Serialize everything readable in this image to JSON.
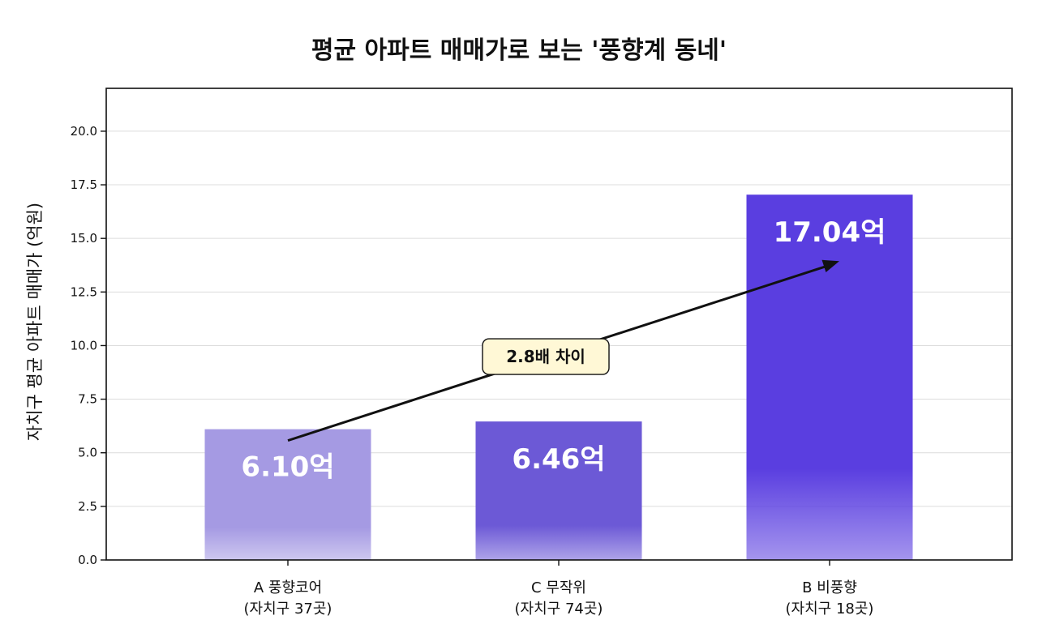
{
  "chart_data": {
    "type": "bar",
    "title": "평균 아파트 매매가로 보는 '풍향계 동네'",
    "ylabel": "자치구 평균 아파트 매매가 (억원)",
    "xlabel": "",
    "ylim": [
      0,
      22
    ],
    "yticks": [
      "0.0",
      "2.5",
      "5.0",
      "7.5",
      "10.0",
      "12.5",
      "15.0",
      "17.5",
      "20.0"
    ],
    "grid": true,
    "categories": [
      {
        "line1": "A 풍향코어",
        "line2": "(자치구 37곳)"
      },
      {
        "line1": "C 무작위",
        "line2": "(자치구 74곳)"
      },
      {
        "line1": "B 비풍향",
        "line2": "(자치구 18곳)"
      }
    ],
    "values": [
      6.1,
      6.46,
      17.04
    ],
    "data_labels": [
      "6.10억",
      "6.46억",
      "17.04억"
    ],
    "colors": [
      "#a59ae3",
      "#6c59d6",
      "#5a3ee0"
    ],
    "annotation": {
      "text": "2.8배 차이",
      "from_bar": 0,
      "to_bar": 2
    }
  }
}
